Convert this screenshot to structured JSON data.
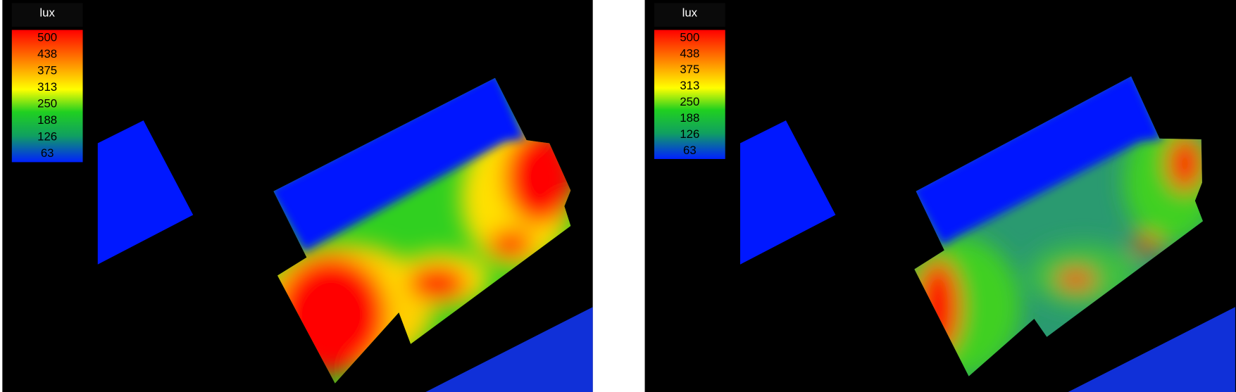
{
  "panels": [
    {
      "legend": {
        "title": "lux",
        "labels": [
          500,
          438,
          375,
          313,
          250,
          188,
          126,
          63
        ]
      }
    },
    {
      "legend": {
        "title": "lux",
        "labels": [
          500,
          438,
          375,
          313,
          250,
          188,
          126,
          63
        ]
      }
    }
  ]
}
